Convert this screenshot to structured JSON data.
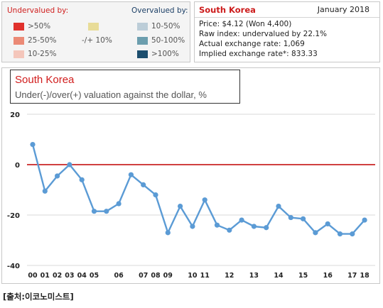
{
  "legend": {
    "undervalued_title": "Undervalued by:",
    "overvalued_title": "Overvalued by:",
    "items": [
      {
        "label": ">50%",
        "color": "#e0312c"
      },
      {
        "label": "25-50%",
        "color": "#eb8a76"
      },
      {
        "label": "10-25%",
        "color": "#f4c6bb"
      },
      {
        "label": "-/+ 10%",
        "color": "#e8dc98"
      },
      {
        "label": "10-50%",
        "color": "#bccdd8"
      },
      {
        "label": "50-100%",
        "color": "#6c9eae"
      },
      {
        "label": ">100%",
        "color": "#1c4e6e"
      }
    ]
  },
  "info": {
    "country": "South Korea",
    "date": "January 2018",
    "lines": [
      "Price: $4.12 (Won 4,400)",
      "Raw index: undervalued by 22.1%",
      "Actual exchange rate: 1,069",
      "Implied exchange rate*: 833.33"
    ]
  },
  "chart_title": {
    "country": "South Korea",
    "subtitle": "Under(-)/over(+) valuation against the dollar, %"
  },
  "source": "[출처:이코노미스트]",
  "colors": {
    "line": "#5b9bd5",
    "zero_line": "#c00000",
    "grid": "#d9d9d9"
  },
  "chart_data": {
    "type": "line",
    "title": "South Korea",
    "subtitle": "Under(-)/over(+) valuation against the dollar, %",
    "ylim": [
      -40,
      20
    ],
    "yticks": [
      20,
      0,
      -20,
      -40
    ],
    "grid": true,
    "x_labels": [
      {
        "label": "00",
        "x": 0
      },
      {
        "label": "01",
        "x": 1
      },
      {
        "label": "02",
        "x": 2
      },
      {
        "label": "03",
        "x": 3
      },
      {
        "label": "04",
        "x": 4
      },
      {
        "label": "05",
        "x": 5
      },
      {
        "label": "06",
        "x": 7
      },
      {
        "label": "07",
        "x": 9
      },
      {
        "label": "08",
        "x": 10
      },
      {
        "label": "09",
        "x": 11
      },
      {
        "label": "10",
        "x": 13
      },
      {
        "label": "11",
        "x": 14
      },
      {
        "label": "12",
        "x": 16
      },
      {
        "label": "13",
        "x": 18
      },
      {
        "label": "14",
        "x": 20
      },
      {
        "label": "15",
        "x": 22
      },
      {
        "label": "16",
        "x": 24
      },
      {
        "label": "17",
        "x": 26
      },
      {
        "label": "18",
        "x": 27
      }
    ],
    "series": [
      {
        "values": [
          {
            "x": 0,
            "y": 8
          },
          {
            "x": 1,
            "y": -10.5
          },
          {
            "x": 2,
            "y": -4.5
          },
          {
            "x": 3,
            "y": 0
          },
          {
            "x": 4,
            "y": -6
          },
          {
            "x": 5,
            "y": -18.5
          },
          {
            "x": 6,
            "y": -18.5
          },
          {
            "x": 7,
            "y": -15.5
          },
          {
            "x": 8,
            "y": -4
          },
          {
            "x": 9,
            "y": -8
          },
          {
            "x": 10,
            "y": -12
          },
          {
            "x": 11,
            "y": -27
          },
          {
            "x": 12,
            "y": -16.5
          },
          {
            "x": 13,
            "y": -24.5
          },
          {
            "x": 14,
            "y": -14
          },
          {
            "x": 15,
            "y": -24
          },
          {
            "x": 16,
            "y": -26
          },
          {
            "x": 17,
            "y": -22
          },
          {
            "x": 18,
            "y": -24.5
          },
          {
            "x": 19,
            "y": -25
          },
          {
            "x": 20,
            "y": -16.5
          },
          {
            "x": 21,
            "y": -21
          },
          {
            "x": 22,
            "y": -21.5
          },
          {
            "x": 23,
            "y": -27
          },
          {
            "x": 24,
            "y": -23.5
          },
          {
            "x": 25,
            "y": -27.5
          },
          {
            "x": 26,
            "y": -27.5
          },
          {
            "x": 27,
            "y": -22
          }
        ]
      }
    ]
  }
}
